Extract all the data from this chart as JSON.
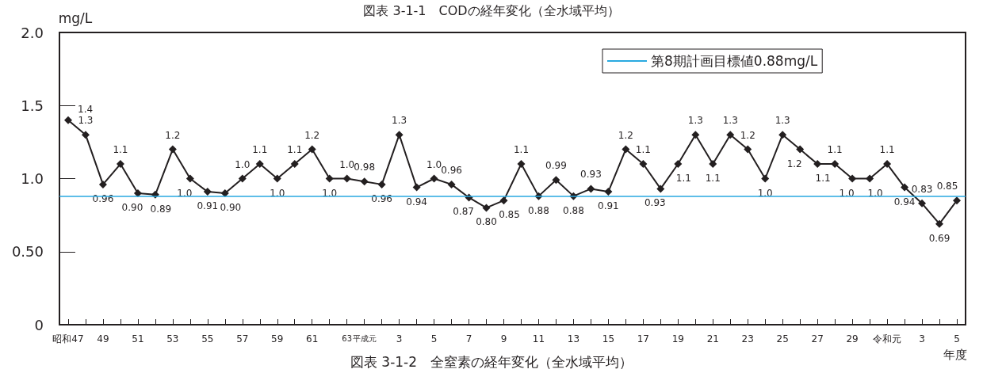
{
  "chart_data": {
    "type": "line",
    "title": "図表 3-1-1　CODの経年変化（全水域平均）",
    "ylabel": "mg/L",
    "xlabel": "年度",
    "categories": [
      "昭和47",
      null,
      "49",
      null,
      "51",
      null,
      "53",
      null,
      "55",
      null,
      "57",
      null,
      "59",
      null,
      "61",
      null,
      "63",
      "平成元",
      null,
      "3",
      null,
      "5",
      null,
      "7",
      null,
      "9",
      null,
      "11",
      null,
      "13",
      null,
      "15",
      null,
      "17",
      null,
      "19",
      null,
      "21",
      null,
      "23",
      null,
      "25",
      null,
      "27",
      null,
      "29",
      null,
      "令和元",
      null,
      "3",
      null,
      "5"
    ],
    "series": [
      {
        "color": "#231f20",
        "values": [
          1.4,
          1.3,
          0.96,
          1.1,
          0.9,
          0.89,
          1.2,
          1.0,
          0.91,
          0.9,
          1.0,
          1.1,
          1.0,
          1.1,
          1.2,
          1.0,
          1.0,
          0.98,
          0.96,
          1.3,
          0.94,
          1.0,
          0.96,
          0.87,
          0.8,
          0.85,
          1.1,
          0.88,
          0.99,
          0.88,
          0.93,
          0.91,
          1.2,
          1.1,
          0.93,
          1.1,
          1.3,
          1.1,
          1.3,
          1.2,
          1.0,
          1.3,
          1.2,
          1.1,
          1.1,
          1.0,
          1.0,
          1.1,
          0.94,
          0.83,
          0.69,
          0.85
        ],
        "value_labels": [
          "1.4",
          "1.3",
          "0.96",
          "1.1",
          "0.90",
          "0.89",
          "1.2",
          "1.0",
          "0.91",
          "0.90",
          "1.0",
          "1.1",
          "1.0",
          "1.1",
          "1.2",
          "1.0",
          "1.0",
          "0.98",
          "0.96",
          "1.3",
          "0.94",
          "1.0",
          "0.96",
          "0.87",
          "0.80",
          "0.85",
          "1.1",
          "0.88",
          "0.99",
          "0.88",
          "0.93",
          "0.91",
          "1.2",
          "1.1",
          "0.93",
          "1.1",
          "1.3",
          "1.1",
          "1.3",
          "1.2",
          "1.0",
          "1.3",
          "1.2",
          "1.1",
          "1.1",
          "1.0",
          "1.0",
          "1.1",
          "0.94",
          "0.83",
          "0.69",
          "0.85"
        ]
      }
    ],
    "ylim": [
      0,
      2.0
    ],
    "yticks": [
      0,
      {
        "value": 0.5,
        "label": "0.50"
      },
      {
        "value": 1.0,
        "label": "1.0"
      },
      {
        "value": 1.5,
        "label": "1.5"
      },
      {
        "value": 2.0,
        "label": "2.0"
      }
    ],
    "marker": "diamond",
    "line_style": "solid",
    "grid": false,
    "legend": "top",
    "ref_lines": [
      {
        "axis": "y",
        "value": 0.88,
        "label": "第8期計画目標値0.88mg/L",
        "color": "#29a9e0"
      }
    ],
    "annotations": [
      "図表 3-1-2　全窒素の経年変化（全水域平均）"
    ]
  }
}
